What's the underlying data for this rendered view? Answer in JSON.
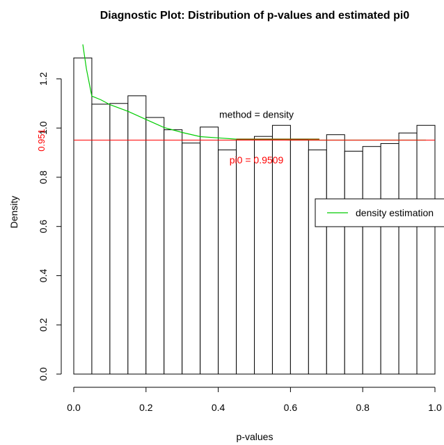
{
  "chart_data": {
    "type": "bar",
    "title": "Diagnostic Plot: Distribution of p-values and estimated pi0",
    "xlabel": "p-values",
    "ylabel": "Density",
    "xlim": [
      0,
      1
    ],
    "ylim": [
      0,
      1.3
    ],
    "x_ticks": [
      0.0,
      0.2,
      0.4,
      0.6,
      0.8,
      1.0
    ],
    "x_tick_labels": [
      "0.0",
      "0.2",
      "0.4",
      "0.6",
      "0.8",
      "1.0"
    ],
    "y_ticks": [
      0.0,
      0.2,
      0.4,
      0.6,
      0.8,
      1.0,
      1.2
    ],
    "y_tick_labels": [
      "0.0",
      "0.2",
      "0.4",
      "0.6",
      "0.8",
      "1.0",
      "1.2"
    ],
    "grid": false,
    "bin_width": 0.05,
    "bin_starts": [
      0.0,
      0.05,
      0.1,
      0.15,
      0.2,
      0.25,
      0.3,
      0.35,
      0.4,
      0.45,
      0.5,
      0.55,
      0.6,
      0.65,
      0.7,
      0.75,
      0.8,
      0.85,
      0.9,
      0.95
    ],
    "values": [
      1.285,
      1.097,
      1.1,
      1.131,
      1.043,
      0.993,
      0.939,
      1.004,
      0.911,
      0.952,
      0.966,
      1.011,
      0.952,
      0.911,
      0.973,
      0.906,
      0.925,
      0.937,
      0.98,
      1.011
    ],
    "density_curve": {
      "name": "density estimation",
      "color": "#00cc00",
      "x": [
        0.025,
        0.035,
        0.05,
        0.075,
        0.1,
        0.15,
        0.2,
        0.25,
        0.3,
        0.35,
        0.4,
        0.45,
        0.5,
        0.55,
        0.6,
        0.65,
        0.7,
        0.75,
        0.8,
        0.85,
        0.9,
        0.95,
        0.975
      ],
      "y": [
        1.34,
        1.24,
        1.13,
        1.115,
        1.095,
        1.068,
        1.035,
        1.002,
        0.982,
        0.965,
        0.96,
        0.955,
        0.953,
        0.952,
        0.951,
        0.951,
        0.951,
        0.951,
        0.951,
        0.951,
        0.951,
        0.951,
        0.951
      ]
    },
    "pi0_line": {
      "value": 0.9509,
      "color": "#ff0000",
      "tick_label": "0.951",
      "label": "pi0 = 0.9509"
    },
    "overlay_segment": {
      "x": [
        0.45,
        0.68
      ],
      "y": 0.955,
      "color": "#7a5a00"
    },
    "annotations": [
      {
        "text": "method = density",
        "x": 0.5,
        "y": 1.055,
        "color": "#000000"
      }
    ],
    "legend": {
      "placement": "right",
      "entries": [
        {
          "label": "density estimation",
          "color": "#00cc00"
        }
      ]
    },
    "colors": {
      "bar_fill": "#ffffff",
      "bar_stroke": "#000000",
      "axis": "#000000",
      "text": "#000000"
    }
  }
}
